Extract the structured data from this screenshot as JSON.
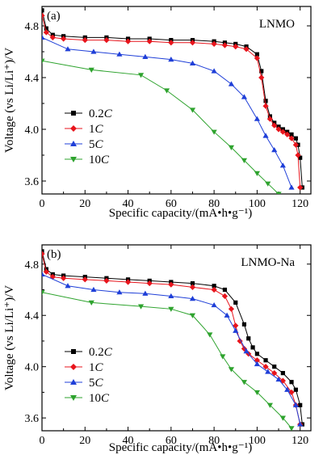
{
  "chart_data": [
    {
      "type": "line",
      "panel_label": "(a)",
      "title": "LNMO",
      "xlabel": "Specific capacity/(mA•h•g⁻¹)",
      "ylabel": "Voltage (vs Li/Li⁺)/V",
      "xlim": [
        0,
        125
      ],
      "ylim": [
        3.5,
        4.95
      ],
      "xticks": [
        0,
        20,
        40,
        60,
        80,
        100,
        120
      ],
      "yticks": [
        3.6,
        4.0,
        4.4,
        4.8
      ],
      "legend_position": "lower-left",
      "series": [
        {
          "name": "0.2C",
          "name_rate": "0.2",
          "name_unit": "C",
          "color": "#000000",
          "marker": "square",
          "x": [
            0,
            2,
            5,
            10,
            20,
            30,
            40,
            50,
            60,
            70,
            80,
            85,
            90,
            95,
            100,
            102,
            104,
            106,
            108,
            110,
            112,
            114,
            116,
            118,
            119,
            120,
            121
          ],
          "y": [
            4.92,
            4.78,
            4.73,
            4.72,
            4.71,
            4.71,
            4.7,
            4.7,
            4.69,
            4.69,
            4.68,
            4.67,
            4.66,
            4.64,
            4.58,
            4.45,
            4.22,
            4.1,
            4.05,
            4.02,
            4.0,
            3.98,
            3.96,
            3.93,
            3.88,
            3.78,
            3.55
          ]
        },
        {
          "name": "1C",
          "name_rate": "1",
          "name_unit": "C",
          "color": "#e8141c",
          "marker": "diamond",
          "x": [
            0,
            2,
            5,
            10,
            20,
            30,
            40,
            50,
            60,
            70,
            80,
            85,
            90,
            95,
            100,
            102,
            104,
            106,
            108,
            110,
            112,
            114,
            116,
            118,
            119,
            120
          ],
          "y": [
            4.88,
            4.75,
            4.71,
            4.7,
            4.69,
            4.69,
            4.68,
            4.68,
            4.67,
            4.67,
            4.66,
            4.65,
            4.64,
            4.62,
            4.55,
            4.4,
            4.18,
            4.08,
            4.03,
            4.0,
            3.98,
            3.96,
            3.93,
            3.88,
            3.8,
            3.55
          ]
        },
        {
          "name": "5C",
          "name_rate": "5",
          "name_unit": "C",
          "color": "#1f3fd8",
          "marker": "triangle-up",
          "x": [
            0,
            12,
            24,
            36,
            48,
            60,
            70,
            80,
            88,
            94,
            100,
            104,
            108,
            112,
            116
          ],
          "y": [
            4.71,
            4.62,
            4.6,
            4.58,
            4.56,
            4.54,
            4.51,
            4.45,
            4.35,
            4.25,
            4.08,
            3.95,
            3.84,
            3.72,
            3.55
          ]
        },
        {
          "name": "10C",
          "name_rate": "10",
          "name_unit": "C",
          "color": "#2ea32e",
          "marker": "triangle-down",
          "x": [
            0,
            23,
            46,
            58,
            70,
            80,
            88,
            94,
            100,
            105,
            110
          ],
          "y": [
            4.53,
            4.46,
            4.42,
            4.3,
            4.15,
            3.98,
            3.86,
            3.76,
            3.66,
            3.58,
            3.5
          ]
        }
      ]
    },
    {
      "type": "line",
      "panel_label": "(b)",
      "title": "LNMO-Na",
      "xlabel": "Specific capacity/(mA•h•g⁻¹)",
      "ylabel": "Voltage (vs Li/Li⁺)/V",
      "xlim": [
        0,
        125
      ],
      "ylim": [
        3.5,
        4.95
      ],
      "xticks": [
        0,
        20,
        40,
        60,
        80,
        100,
        120
      ],
      "yticks": [
        3.6,
        4.0,
        4.4,
        4.8
      ],
      "legend_position": "lower-left",
      "series": [
        {
          "name": "0.2C",
          "name_rate": "0.2",
          "name_unit": "C",
          "color": "#000000",
          "marker": "square",
          "x": [
            0,
            2,
            5,
            10,
            20,
            30,
            40,
            50,
            60,
            70,
            80,
            85,
            90,
            94,
            96,
            98,
            100,
            104,
            108,
            112,
            116,
            118,
            120,
            121
          ],
          "y": [
            4.9,
            4.76,
            4.72,
            4.71,
            4.7,
            4.69,
            4.68,
            4.67,
            4.66,
            4.65,
            4.63,
            4.6,
            4.5,
            4.33,
            4.22,
            4.15,
            4.1,
            4.05,
            4.0,
            3.95,
            3.88,
            3.82,
            3.7,
            3.55
          ]
        },
        {
          "name": "1C",
          "name_rate": "1",
          "name_unit": "C",
          "color": "#e8141c",
          "marker": "diamond",
          "x": [
            0,
            2,
            5,
            10,
            20,
            30,
            40,
            50,
            60,
            70,
            80,
            85,
            88,
            90,
            92,
            94,
            96,
            100,
            104,
            108,
            112,
            116,
            118,
            120
          ],
          "y": [
            4.88,
            4.74,
            4.7,
            4.69,
            4.68,
            4.67,
            4.66,
            4.65,
            4.64,
            4.62,
            4.6,
            4.55,
            4.45,
            4.32,
            4.2,
            4.14,
            4.1,
            4.05,
            4.0,
            3.95,
            3.89,
            3.8,
            3.7,
            3.55
          ]
        },
        {
          "name": "5C",
          "name_rate": "5",
          "name_unit": "C",
          "color": "#1f3fd8",
          "marker": "triangle-up",
          "x": [
            0,
            12,
            24,
            36,
            48,
            60,
            70,
            80,
            86,
            90,
            95,
            100,
            105,
            110,
            114,
            118,
            120
          ],
          "y": [
            4.72,
            4.63,
            4.6,
            4.58,
            4.57,
            4.55,
            4.53,
            4.48,
            4.4,
            4.28,
            4.12,
            4.02,
            3.96,
            3.9,
            3.82,
            3.7,
            3.55
          ]
        },
        {
          "name": "10C",
          "name_rate": "10",
          "name_unit": "C",
          "color": "#2ea32e",
          "marker": "triangle-down",
          "x": [
            0,
            23,
            46,
            60,
            70,
            78,
            84,
            88,
            94,
            100,
            106,
            112,
            116
          ],
          "y": [
            4.58,
            4.5,
            4.47,
            4.45,
            4.4,
            4.25,
            4.08,
            3.98,
            3.88,
            3.8,
            3.7,
            3.6,
            3.52
          ]
        }
      ]
    }
  ]
}
